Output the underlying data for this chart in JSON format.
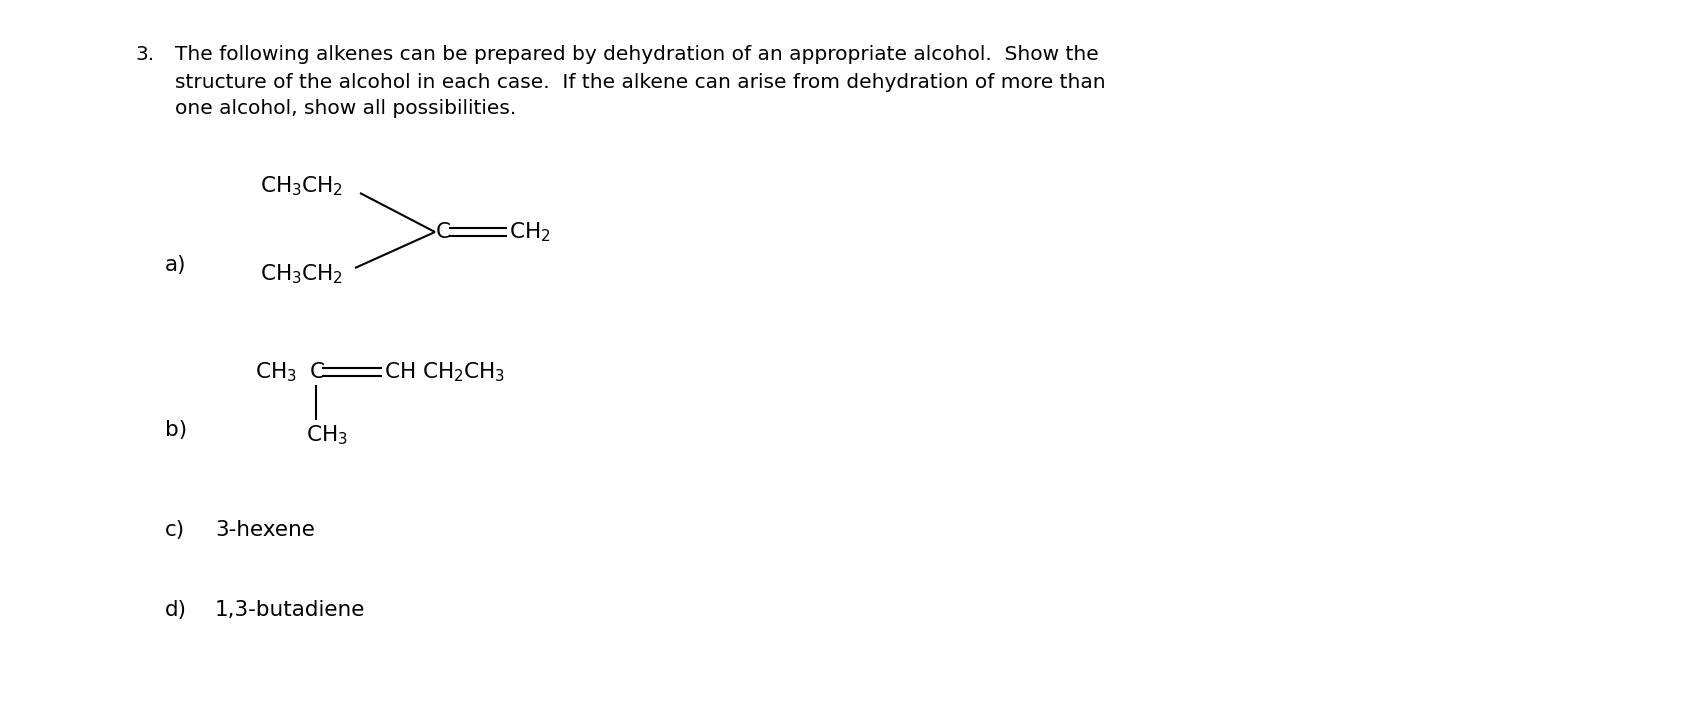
{
  "background_color": "#ffffff",
  "fig_width": 17.0,
  "fig_height": 7.1,
  "title_number": "3.",
  "title_line1": "The following alkenes can be prepared by dehydration of an appropriate alcohol.  Show the",
  "title_line2": "structure of the alcohol in each case.  If the alkene can arise from dehydration of more than",
  "title_line3": "one alcohol, show all possibilities.",
  "label_a": "a)",
  "label_b": "b)",
  "label_c": "c)",
  "label_d": "d)",
  "text_c": "3-hexene",
  "text_d": "1,3-butadiene",
  "font_size_main": 14.5,
  "font_size_label": 15.5,
  "font_size_chem": 15.5,
  "font_family": "Arial"
}
